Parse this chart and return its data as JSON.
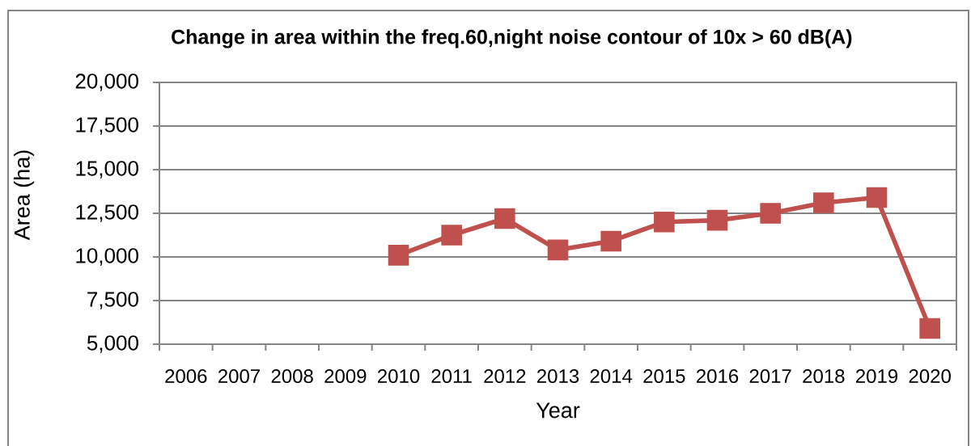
{
  "chart_data": {
    "type": "line",
    "title": "Change in area within the freq.60,night noise contour of 10x > 60 dB(A)",
    "xlabel": "Year",
    "ylabel": "Area (ha)",
    "categories": [
      "2006",
      "2007",
      "2008",
      "2009",
      "2010",
      "2011",
      "2012",
      "2013",
      "2014",
      "2015",
      "2016",
      "2017",
      "2018",
      "2019",
      "2020"
    ],
    "values": [
      null,
      null,
      null,
      null,
      10100,
      11250,
      12200,
      10400,
      10900,
      12000,
      12100,
      12500,
      13100,
      13400,
      5900
    ],
    "color": "#c0504d",
    "ylim": [
      5000,
      20000
    ],
    "yticks": [
      {
        "value": 5000,
        "label": "5,000"
      },
      {
        "value": 7500,
        "label": "7,500"
      },
      {
        "value": 10000,
        "label": "10,000"
      },
      {
        "value": 12500,
        "label": "12,500"
      },
      {
        "value": 15000,
        "label": "15,000"
      },
      {
        "value": 17500,
        "label": "17,500"
      },
      {
        "value": 20000,
        "label": "20,000"
      }
    ],
    "grid": "y",
    "marker": "square",
    "line_style": "solid"
  }
}
